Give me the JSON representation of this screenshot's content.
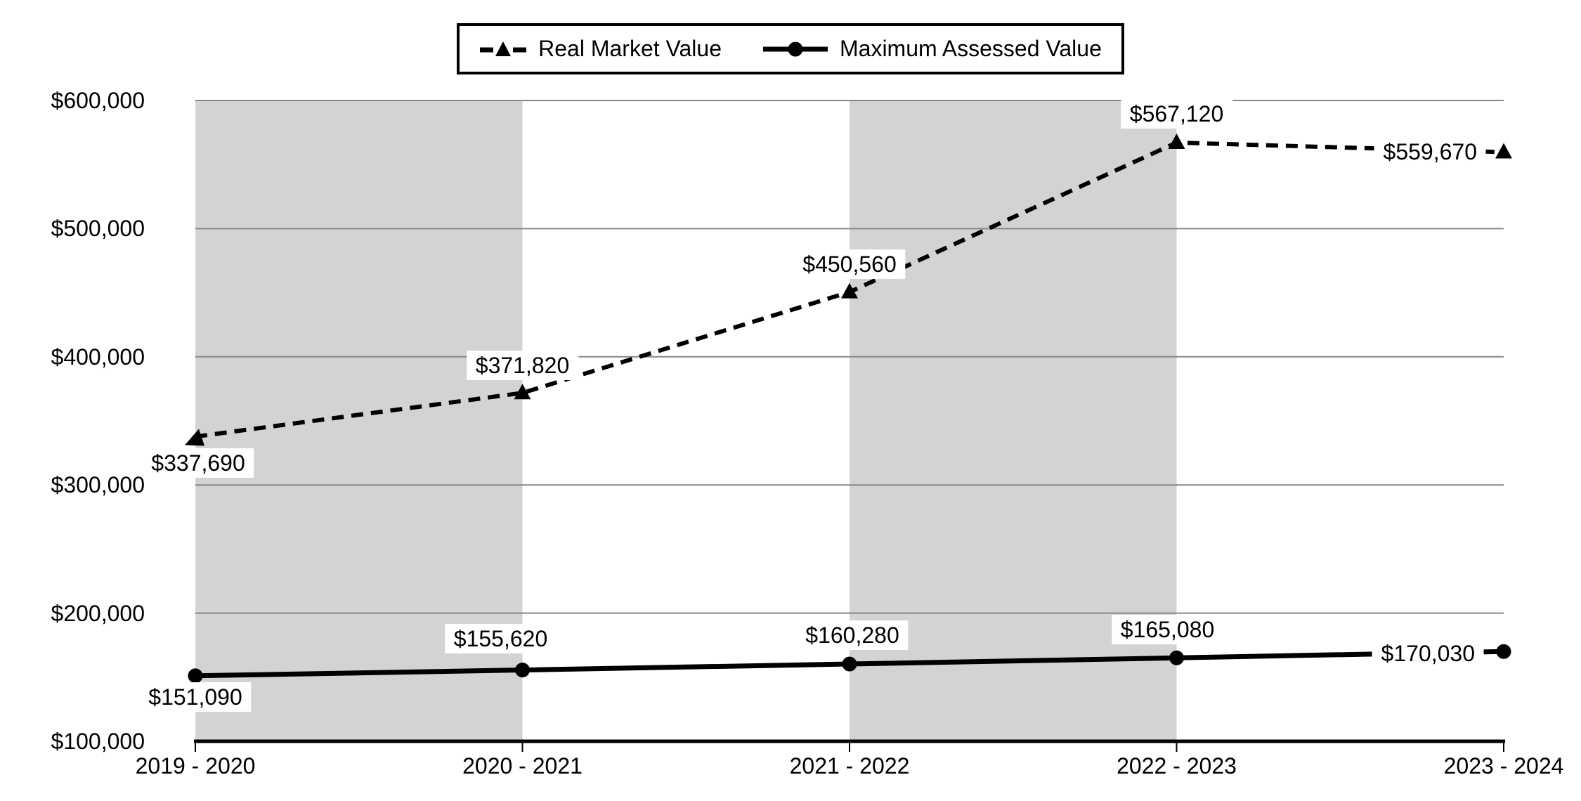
{
  "chart_data": {
    "type": "line",
    "categories": [
      "2019 - 2020",
      "2020 - 2021",
      "2021 - 2022",
      "2022 - 2023",
      "2023 - 2024"
    ],
    "series": [
      {
        "name": "Real Market Value",
        "values": [
          337690,
          371820,
          450560,
          567120,
          559670
        ],
        "labels": [
          "$337,690",
          "$371,820",
          "$450,560",
          "$567,120",
          "$559,670"
        ],
        "line_style": "dashed",
        "marker": "triangle",
        "start_arrowhead": true,
        "color": "#000000"
      },
      {
        "name": "Maximum Assessed Value",
        "values": [
          151090,
          155620,
          160280,
          165080,
          170030
        ],
        "labels": [
          "$151,090",
          "$155,620",
          "$160,280",
          "$165,080",
          "$170,030"
        ],
        "line_style": "solid",
        "marker": "circle",
        "start_arrowhead": false,
        "color": "#000000"
      }
    ],
    "y_axis": {
      "min": 100000,
      "max": 600000,
      "tick_step": 100000,
      "tick_labels": [
        "$100,000",
        "$200,000",
        "$300,000",
        "$400,000",
        "$500,000",
        "$600,000"
      ]
    },
    "legend_position": "top",
    "grid": "horizontal",
    "background_bands": {
      "color": "#d3d3d3",
      "between_category_indexes": [
        [
          0,
          1
        ],
        [
          2,
          3
        ]
      ]
    },
    "colors": {
      "gridline": "#878787",
      "axis": "#000000",
      "series": "#000000",
      "label_background": "#ffffff"
    }
  }
}
